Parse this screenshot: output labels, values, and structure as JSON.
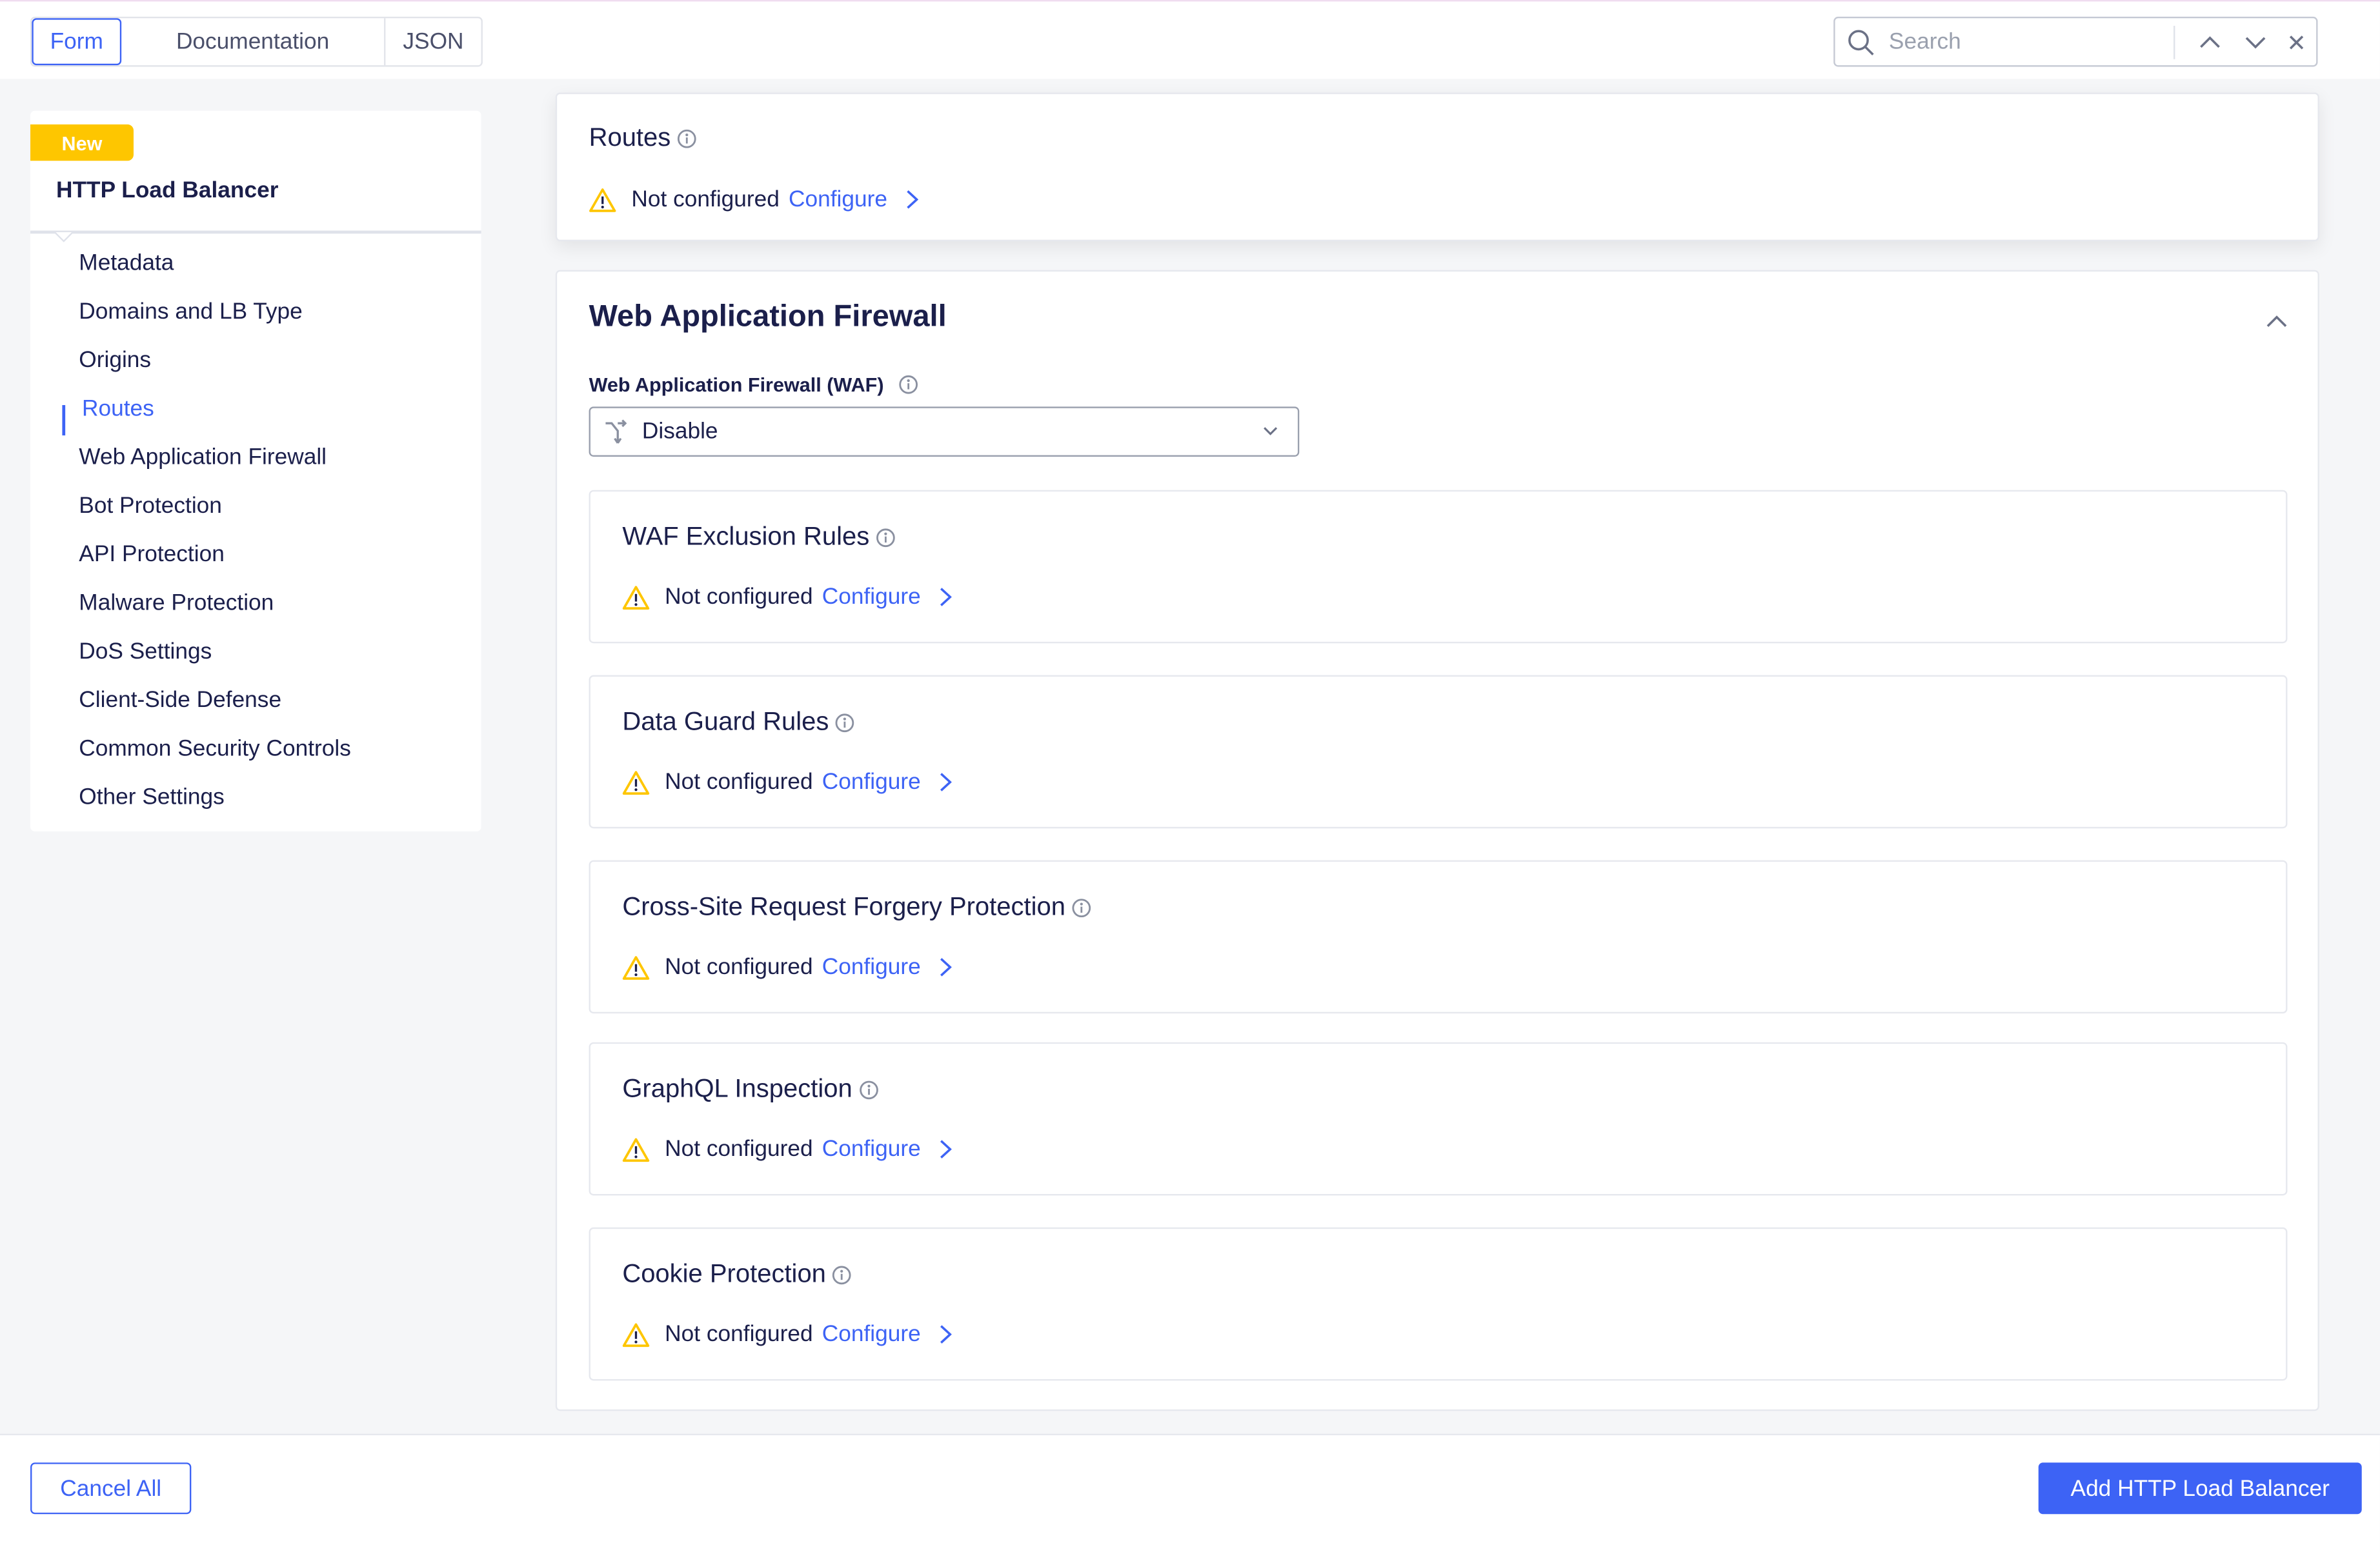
{
  "tabs": [
    {
      "label": "Form",
      "active": true
    },
    {
      "label": "Documentation"
    },
    {
      "label": "JSON"
    }
  ],
  "search": {
    "placeholder": "Search"
  },
  "sidebar": {
    "badge": "New",
    "title": "HTTP Load Balancer",
    "active_index": 3,
    "items": [
      "Metadata",
      "Domains and LB Type",
      "Origins",
      "Routes",
      "Web Application Firewall",
      "Bot Protection",
      "API Protection",
      "Malware Protection",
      "DoS Settings",
      "Client-Side Defense",
      "Common Security Controls",
      "Other Settings"
    ]
  },
  "routes": {
    "title": "Routes",
    "status": "Not configured",
    "link": "Configure"
  },
  "waf": {
    "title": "Web Application Firewall",
    "field_label": "Web Application Firewall (WAF)",
    "select_value": "Disable",
    "subsections": [
      {
        "title": "WAF Exclusion Rules",
        "status": "Not configured",
        "link": "Configure"
      },
      {
        "title": "Data Guard Rules",
        "status": "Not configured",
        "link": "Configure"
      },
      {
        "title": "Cross-Site Request Forgery Protection",
        "status": "Not configured",
        "link": "Configure"
      },
      {
        "title": "GraphQL Inspection",
        "status": "Not configured",
        "link": "Configure"
      },
      {
        "title": "Cookie Protection",
        "status": "Not configured",
        "link": "Configure"
      }
    ]
  },
  "footer": {
    "cancel": "Cancel All",
    "submit": "Add HTTP Load Balancer"
  },
  "colors": {
    "accent": "#3d63f5",
    "warning": "#fec600",
    "text": "#1b1f4b"
  }
}
